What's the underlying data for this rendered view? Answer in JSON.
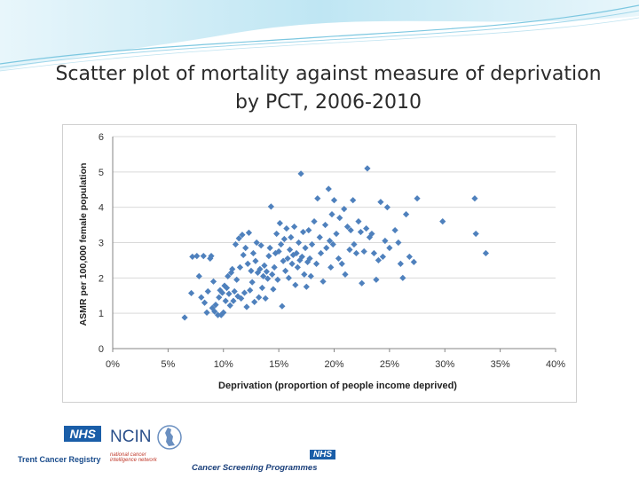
{
  "slide": {
    "title_line1": "Scatter plot of mortality against measure of deprivation",
    "title_line2": "by PCT, 2006-2010"
  },
  "footer": {
    "logo1_badge": "NHS",
    "logo1_text": "Trent Cancer Registry",
    "logo2_text": "NCIN",
    "logo2_sub1": "national cancer",
    "logo2_sub2": "intelligence network",
    "logo3_badge": "NHS",
    "logo3_text": "Cancer Screening Programmes"
  },
  "colors": {
    "marker": "#4f81bd",
    "grid": "#d9d9d9",
    "axis": "#868686",
    "nhs_blue": "#1a5ea8"
  },
  "chart_data": {
    "type": "scatter",
    "title": "",
    "xlabel": "Deprivation (proportion of people income deprived)",
    "ylabel": "ASMR per 100,000 female population",
    "xlim": [
      0,
      0.4
    ],
    "ylim": [
      0,
      6
    ],
    "x_ticks": [
      "0%",
      "5%",
      "10%",
      "15%",
      "20%",
      "25%",
      "30%",
      "35%",
      "40%"
    ],
    "y_ticks": [
      "0",
      "1",
      "2",
      "3",
      "4",
      "5",
      "6"
    ],
    "grid": "horizontal",
    "legend": "none",
    "marker": "diamond",
    "points": [
      [
        0.065,
        0.88
      ],
      [
        0.071,
        1.57
      ],
      [
        0.072,
        2.6
      ],
      [
        0.076,
        2.62
      ],
      [
        0.078,
        2.05
      ],
      [
        0.08,
        1.45
      ],
      [
        0.082,
        2.62
      ],
      [
        0.083,
        1.3
      ],
      [
        0.085,
        1.02
      ],
      [
        0.086,
        1.62
      ],
      [
        0.088,
        2.55
      ],
      [
        0.089,
        2.62
      ],
      [
        0.09,
        1.15
      ],
      [
        0.091,
        1.9
      ],
      [
        0.092,
        1.05
      ],
      [
        0.093,
        1.24
      ],
      [
        0.095,
        0.95
      ],
      [
        0.096,
        1.45
      ],
      [
        0.097,
        1.65
      ],
      [
        0.098,
        0.95
      ],
      [
        0.099,
        1.58
      ],
      [
        0.1,
        1.02
      ],
      [
        0.101,
        1.78
      ],
      [
        0.102,
        1.35
      ],
      [
        0.103,
        1.72
      ],
      [
        0.104,
        2.05
      ],
      [
        0.105,
        1.55
      ],
      [
        0.106,
        1.22
      ],
      [
        0.107,
        2.15
      ],
      [
        0.108,
        2.25
      ],
      [
        0.109,
        1.35
      ],
      [
        0.11,
        1.62
      ],
      [
        0.111,
        2.95
      ],
      [
        0.112,
        1.95
      ],
      [
        0.113,
        1.48
      ],
      [
        0.114,
        3.12
      ],
      [
        0.115,
        2.3
      ],
      [
        0.116,
        1.42
      ],
      [
        0.117,
        3.22
      ],
      [
        0.118,
        2.65
      ],
      [
        0.119,
        1.58
      ],
      [
        0.12,
        2.85
      ],
      [
        0.121,
        1.18
      ],
      [
        0.122,
        2.4
      ],
      [
        0.123,
        3.28
      ],
      [
        0.124,
        1.65
      ],
      [
        0.125,
        2.2
      ],
      [
        0.126,
        1.88
      ],
      [
        0.127,
        2.7
      ],
      [
        0.128,
        1.32
      ],
      [
        0.129,
        2.48
      ],
      [
        0.13,
        3.0
      ],
      [
        0.131,
        2.15
      ],
      [
        0.132,
        1.45
      ],
      [
        0.133,
        2.25
      ],
      [
        0.134,
        2.92
      ],
      [
        0.135,
        1.72
      ],
      [
        0.136,
        2.05
      ],
      [
        0.137,
        2.35
      ],
      [
        0.138,
        1.42
      ],
      [
        0.139,
        2.18
      ],
      [
        0.14,
        1.98
      ],
      [
        0.141,
        2.62
      ],
      [
        0.142,
        2.85
      ],
      [
        0.143,
        4.02
      ],
      [
        0.144,
        2.1
      ],
      [
        0.145,
        1.68
      ],
      [
        0.146,
        2.3
      ],
      [
        0.147,
        2.7
      ],
      [
        0.148,
        3.25
      ],
      [
        0.149,
        1.95
      ],
      [
        0.15,
        2.75
      ],
      [
        0.151,
        3.55
      ],
      [
        0.152,
        2.95
      ],
      [
        0.153,
        1.2
      ],
      [
        0.154,
        2.48
      ],
      [
        0.155,
        3.1
      ],
      [
        0.156,
        2.2
      ],
      [
        0.157,
        3.4
      ],
      [
        0.158,
        2.55
      ],
      [
        0.159,
        2.0
      ],
      [
        0.16,
        2.8
      ],
      [
        0.161,
        3.15
      ],
      [
        0.162,
        2.4
      ],
      [
        0.163,
        2.65
      ],
      [
        0.164,
        3.45
      ],
      [
        0.165,
        1.8
      ],
      [
        0.166,
        2.7
      ],
      [
        0.167,
        2.3
      ],
      [
        0.168,
        3.0
      ],
      [
        0.169,
        2.5
      ],
      [
        0.17,
        4.95
      ],
      [
        0.171,
        2.6
      ],
      [
        0.172,
        3.3
      ],
      [
        0.173,
        2.1
      ],
      [
        0.174,
        2.85
      ],
      [
        0.175,
        1.75
      ],
      [
        0.176,
        2.45
      ],
      [
        0.177,
        3.35
      ],
      [
        0.178,
        2.55
      ],
      [
        0.179,
        2.05
      ],
      [
        0.18,
        2.95
      ],
      [
        0.182,
        3.6
      ],
      [
        0.184,
        2.4
      ],
      [
        0.185,
        4.25
      ],
      [
        0.187,
        3.15
      ],
      [
        0.188,
        2.7
      ],
      [
        0.19,
        1.9
      ],
      [
        0.192,
        3.5
      ],
      [
        0.193,
        2.85
      ],
      [
        0.195,
        4.52
      ],
      [
        0.196,
        3.05
      ],
      [
        0.197,
        2.3
      ],
      [
        0.198,
        3.8
      ],
      [
        0.199,
        2.95
      ],
      [
        0.2,
        4.2
      ],
      [
        0.202,
        3.25
      ],
      [
        0.204,
        2.55
      ],
      [
        0.205,
        3.7
      ],
      [
        0.207,
        2.4
      ],
      [
        0.209,
        3.95
      ],
      [
        0.21,
        2.1
      ],
      [
        0.212,
        3.45
      ],
      [
        0.214,
        2.8
      ],
      [
        0.215,
        3.35
      ],
      [
        0.217,
        4.2
      ],
      [
        0.218,
        2.95
      ],
      [
        0.22,
        2.7
      ],
      [
        0.222,
        3.6
      ],
      [
        0.224,
        3.3
      ],
      [
        0.225,
        1.85
      ],
      [
        0.227,
        2.75
      ],
      [
        0.229,
        3.4
      ],
      [
        0.23,
        5.1
      ],
      [
        0.232,
        3.15
      ],
      [
        0.234,
        3.25
      ],
      [
        0.236,
        2.7
      ],
      [
        0.238,
        1.95
      ],
      [
        0.24,
        2.5
      ],
      [
        0.242,
        4.15
      ],
      [
        0.244,
        2.6
      ],
      [
        0.246,
        3.05
      ],
      [
        0.248,
        4.0
      ],
      [
        0.25,
        2.85
      ],
      [
        0.255,
        3.35
      ],
      [
        0.258,
        3.0
      ],
      [
        0.26,
        2.4
      ],
      [
        0.262,
        2.0
      ],
      [
        0.265,
        3.8
      ],
      [
        0.268,
        2.6
      ],
      [
        0.272,
        2.45
      ],
      [
        0.275,
        4.25
      ],
      [
        0.298,
        3.6
      ],
      [
        0.327,
        4.25
      ],
      [
        0.328,
        3.25
      ],
      [
        0.337,
        2.7
      ]
    ]
  }
}
